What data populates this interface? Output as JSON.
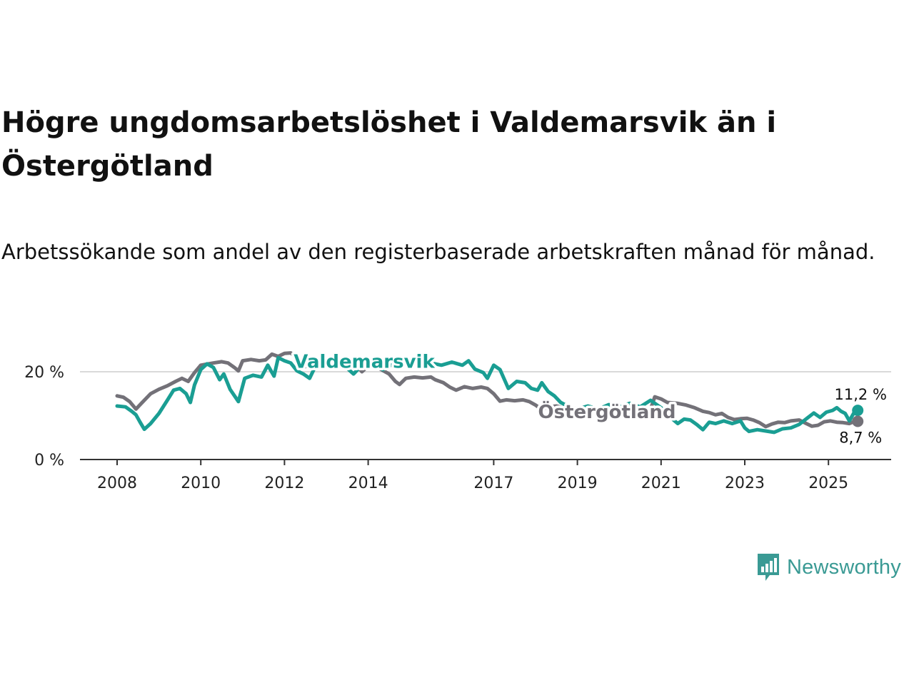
{
  "title": "Högre ungdomsarbetslöshet i Valdemarsvik än i Östergötland",
  "subtitle": "Arbetssökande som andel av den registerbaserade arbetskraften månad för månad.",
  "brand": {
    "name": "Newsworthy",
    "color": "#3a9a94"
  },
  "colors": {
    "valdemarsvik": "#1a9e93",
    "ostergotland": "#737178",
    "grid": "#d9d9d9",
    "axis": "#333333"
  },
  "chart_data": {
    "type": "line",
    "title": "Högre ungdomsarbetslöshet i Valdemarsvik än i Östergötland",
    "ylabel": "",
    "xlabel": "",
    "ylim": [
      0,
      25
    ],
    "xlim": [
      2007.9,
      2025.9
    ],
    "y_ticks": [
      {
        "value": 0,
        "label": "0 %"
      },
      {
        "value": 20,
        "label": "20 %"
      }
    ],
    "x_ticks": [
      {
        "value": 2008,
        "label": "2008"
      },
      {
        "value": 2010,
        "label": "2010"
      },
      {
        "value": 2012,
        "label": "2012"
      },
      {
        "value": 2014,
        "label": "2014"
      },
      {
        "value": 2017,
        "label": "2017"
      },
      {
        "value": 2019,
        "label": "2019"
      },
      {
        "value": 2021,
        "label": "2021"
      },
      {
        "value": 2023,
        "label": "2023"
      },
      {
        "value": 2025,
        "label": "2025"
      }
    ],
    "series": [
      {
        "name": "Valdemarsvik",
        "color": "#1a9e93",
        "end_label": "11,2 %",
        "points": [
          [
            2008.0,
            12.2
          ],
          [
            2008.2,
            12
          ],
          [
            2008.35,
            11
          ],
          [
            2008.45,
            10.2
          ],
          [
            2008.55,
            8.5
          ],
          [
            2008.65,
            6.9
          ],
          [
            2008.8,
            8.2
          ],
          [
            2009.0,
            10.5
          ],
          [
            2009.2,
            13.5
          ],
          [
            2009.35,
            15.8
          ],
          [
            2009.5,
            16.2
          ],
          [
            2009.65,
            15
          ],
          [
            2009.75,
            13
          ],
          [
            2009.85,
            17
          ],
          [
            2010.0,
            20.5
          ],
          [
            2010.15,
            21.8
          ],
          [
            2010.3,
            21
          ],
          [
            2010.45,
            18.2
          ],
          [
            2010.55,
            19.5
          ],
          [
            2010.7,
            16
          ],
          [
            2010.9,
            13.2
          ],
          [
            2011.05,
            18.5
          ],
          [
            2011.25,
            19.2
          ],
          [
            2011.45,
            18.8
          ],
          [
            2011.6,
            21.5
          ],
          [
            2011.75,
            19
          ],
          [
            2011.85,
            23.2
          ],
          [
            2012.0,
            22.5
          ],
          [
            2012.15,
            22
          ],
          [
            2012.3,
            20.2
          ],
          [
            2012.45,
            19.5
          ],
          [
            2012.6,
            18.5
          ],
          [
            2012.75,
            21.5
          ],
          [
            2012.9,
            23.5
          ],
          [
            2013.0,
            23
          ],
          [
            2013.2,
            22.5
          ],
          [
            2013.35,
            21.6
          ],
          [
            2013.5,
            20.8
          ],
          [
            2013.65,
            19.5
          ],
          [
            2013.8,
            21
          ],
          [
            2013.95,
            21.6
          ],
          [
            2014.15,
            21.8
          ],
          [
            2014.35,
            20.5
          ],
          [
            2014.55,
            21.5
          ],
          [
            2014.75,
            21.3
          ],
          [
            2015.0,
            22
          ],
          [
            2015.25,
            22.5
          ],
          [
            2015.5,
            22
          ],
          [
            2015.75,
            21.5
          ],
          [
            2016.0,
            22.2
          ],
          [
            2016.25,
            21.5
          ],
          [
            2016.4,
            22.5
          ],
          [
            2016.55,
            20.6
          ],
          [
            2016.75,
            19.8
          ],
          [
            2016.85,
            18.5
          ],
          [
            2017.0,
            21.5
          ],
          [
            2017.15,
            20.5
          ],
          [
            2017.35,
            16.2
          ],
          [
            2017.55,
            17.8
          ],
          [
            2017.75,
            17.5
          ],
          [
            2017.9,
            16.2
          ],
          [
            2018.05,
            15.8
          ],
          [
            2018.15,
            17.5
          ],
          [
            2018.3,
            15.5
          ],
          [
            2018.45,
            14.5
          ],
          [
            2018.6,
            13
          ],
          [
            2018.8,
            12
          ],
          [
            2019.0,
            11.5
          ],
          [
            2019.25,
            12.2
          ],
          [
            2019.5,
            11.5
          ],
          [
            2019.75,
            12.5
          ],
          [
            2020.0,
            12
          ],
          [
            2020.25,
            12.8
          ],
          [
            2020.5,
            12
          ],
          [
            2020.75,
            13.5
          ],
          [
            2021.0,
            11.8
          ],
          [
            2021.2,
            9.8
          ],
          [
            2021.4,
            8.2
          ],
          [
            2021.55,
            9.2
          ],
          [
            2021.7,
            9
          ],
          [
            2021.85,
            8
          ],
          [
            2022.0,
            6.8
          ],
          [
            2022.15,
            8.5
          ],
          [
            2022.3,
            8.2
          ],
          [
            2022.5,
            8.8
          ],
          [
            2022.7,
            8.2
          ],
          [
            2022.9,
            8.8
          ],
          [
            2023.0,
            7.2
          ],
          [
            2023.1,
            6.4
          ],
          [
            2023.3,
            6.8
          ],
          [
            2023.5,
            6.5
          ],
          [
            2023.7,
            6.2
          ],
          [
            2023.9,
            7
          ],
          [
            2024.1,
            7.2
          ],
          [
            2024.3,
            8
          ],
          [
            2024.5,
            9.5
          ],
          [
            2024.65,
            10.6
          ],
          [
            2024.8,
            9.6
          ],
          [
            2024.95,
            10.8
          ],
          [
            2025.1,
            11.2
          ],
          [
            2025.2,
            11.8
          ],
          [
            2025.3,
            11
          ],
          [
            2025.4,
            10.5
          ],
          [
            2025.5,
            8.8
          ],
          [
            2025.6,
            10.5
          ],
          [
            2025.7,
            11.2
          ]
        ]
      },
      {
        "name": "Östergötland",
        "color": "#737178",
        "end_label": "8,7 %",
        "points": [
          [
            2008.0,
            14.5
          ],
          [
            2008.15,
            14.2
          ],
          [
            2008.3,
            13.2
          ],
          [
            2008.45,
            11.5
          ],
          [
            2008.6,
            13
          ],
          [
            2008.8,
            15
          ],
          [
            2009.0,
            16
          ],
          [
            2009.2,
            16.8
          ],
          [
            2009.4,
            17.8
          ],
          [
            2009.55,
            18.5
          ],
          [
            2009.7,
            17.8
          ],
          [
            2009.85,
            19.8
          ],
          [
            2010.0,
            21.5
          ],
          [
            2010.3,
            22
          ],
          [
            2010.5,
            22.3
          ],
          [
            2010.65,
            22
          ],
          [
            2010.8,
            21
          ],
          [
            2010.9,
            20.2
          ],
          [
            2011.0,
            22.5
          ],
          [
            2011.2,
            22.8
          ],
          [
            2011.4,
            22.5
          ],
          [
            2011.55,
            22.7
          ],
          [
            2011.7,
            24
          ],
          [
            2011.85,
            23.5
          ],
          [
            2012.0,
            24.2
          ],
          [
            2012.15,
            24.3
          ],
          [
            2012.3,
            23.2
          ],
          [
            2012.45,
            21
          ],
          [
            2012.6,
            21.6
          ],
          [
            2012.75,
            22
          ],
          [
            2012.9,
            21.5
          ],
          [
            2013.1,
            21.8
          ],
          [
            2013.3,
            21.2
          ],
          [
            2013.5,
            22
          ],
          [
            2013.7,
            21.8
          ],
          [
            2013.85,
            20
          ],
          [
            2014.0,
            21.3
          ],
          [
            2014.15,
            21.4
          ],
          [
            2014.35,
            20.3
          ],
          [
            2014.5,
            19.5
          ],
          [
            2014.65,
            17.8
          ],
          [
            2014.75,
            17.1
          ],
          [
            2014.9,
            18.5
          ],
          [
            2015.1,
            18.8
          ],
          [
            2015.3,
            18.6
          ],
          [
            2015.5,
            18.8
          ],
          [
            2015.6,
            18.2
          ],
          [
            2015.8,
            17.5
          ],
          [
            2015.95,
            16.5
          ],
          [
            2016.1,
            15.8
          ],
          [
            2016.3,
            16.6
          ],
          [
            2016.5,
            16.2
          ],
          [
            2016.7,
            16.5
          ],
          [
            2016.85,
            16.2
          ],
          [
            2017.0,
            15
          ],
          [
            2017.15,
            13.3
          ],
          [
            2017.3,
            13.6
          ],
          [
            2017.5,
            13.4
          ],
          [
            2017.7,
            13.6
          ],
          [
            2017.85,
            13.2
          ],
          [
            2018.0,
            12.4
          ],
          [
            2018.15,
            11.4
          ],
          [
            2018.3,
            12
          ],
          [
            2018.5,
            12.2
          ],
          [
            2018.65,
            11.8
          ],
          [
            2018.8,
            12
          ],
          [
            2019.0,
            11.5
          ],
          [
            2019.25,
            11.2
          ],
          [
            2019.5,
            11
          ],
          [
            2019.75,
            10.8
          ],
          [
            2020.0,
            10.5
          ],
          [
            2020.25,
            10.2
          ],
          [
            2020.5,
            10
          ],
          [
            2020.75,
            11.5
          ],
          [
            2020.85,
            14.3
          ],
          [
            2021.0,
            13.8
          ],
          [
            2021.15,
            13
          ],
          [
            2021.4,
            12.8
          ],
          [
            2021.6,
            12.4
          ],
          [
            2021.8,
            11.8
          ],
          [
            2022.0,
            11
          ],
          [
            2022.15,
            10.7
          ],
          [
            2022.3,
            10.2
          ],
          [
            2022.45,
            10.5
          ],
          [
            2022.6,
            9.6
          ],
          [
            2022.75,
            9.1
          ],
          [
            2022.9,
            9.3
          ],
          [
            2023.05,
            9.4
          ],
          [
            2023.2,
            9
          ],
          [
            2023.35,
            8.4
          ],
          [
            2023.5,
            7.5
          ],
          [
            2023.65,
            8.1
          ],
          [
            2023.8,
            8.5
          ],
          [
            2023.95,
            8.4
          ],
          [
            2024.1,
            8.8
          ],
          [
            2024.3,
            9
          ],
          [
            2024.45,
            8.3
          ],
          [
            2024.6,
            7.6
          ],
          [
            2024.75,
            7.8
          ],
          [
            2024.9,
            8.6
          ],
          [
            2025.05,
            8.8
          ],
          [
            2025.2,
            8.5
          ],
          [
            2025.35,
            8.4
          ],
          [
            2025.5,
            8.2
          ],
          [
            2025.6,
            8.6
          ],
          [
            2025.7,
            8.7
          ]
        ]
      }
    ]
  }
}
